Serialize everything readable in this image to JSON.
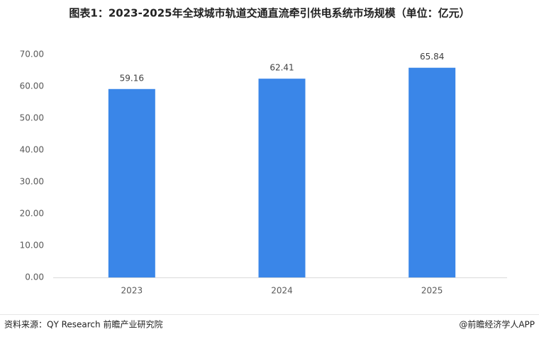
{
  "chart_data": {
    "type": "bar",
    "title": "图表1：2023-2025年全球城市轨道交通直流牵引供电系统市场规模（单位：亿元）",
    "categories": [
      "2023",
      "2024",
      "2025"
    ],
    "values": [
      59.16,
      62.41,
      65.84
    ],
    "color": "#3a86e8",
    "ylim": [
      0,
      70
    ],
    "yticks": [
      {
        "value": 0,
        "label": "0.00"
      },
      {
        "value": 10,
        "label": "10.00"
      },
      {
        "value": 20,
        "label": "20.00"
      },
      {
        "value": 30,
        "label": "30.00"
      },
      {
        "value": 40,
        "label": "40.00"
      },
      {
        "value": 50,
        "label": "50.00"
      },
      {
        "value": 60,
        "label": "60.00"
      },
      {
        "value": 70,
        "label": "70.00"
      }
    ],
    "grid": false,
    "source": "资料来源：QY Research  前瞻产业研究院",
    "credit": "@前瞻经济学人APP"
  }
}
